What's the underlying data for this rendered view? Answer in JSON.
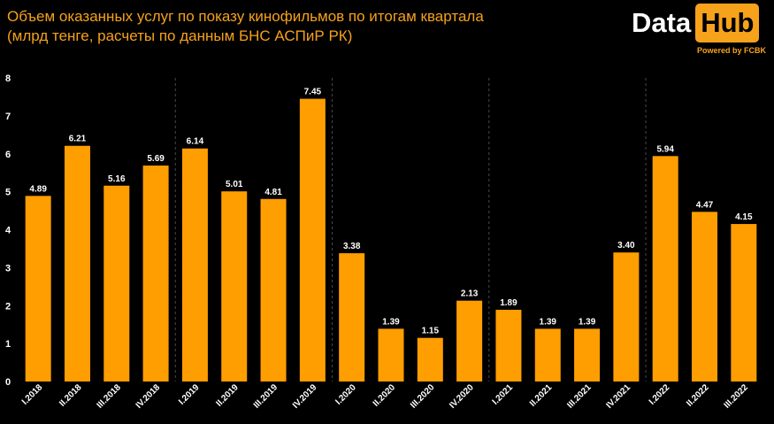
{
  "header": {
    "title_line1": "Объем оказанных услуг по показу кинофильмов по итогам квартала",
    "title_line2": "(млрд тенге, расчеты по данным БНС АСПиР РК)"
  },
  "logo": {
    "data_text": "Data",
    "hub_text": "Hub",
    "powered_text": "Powered by FCBK"
  },
  "colors": {
    "bar": "#FF9E00",
    "title": "#F5A11C",
    "text": "#FFFFFF",
    "grid": "#4A4A4A"
  },
  "chart_data": {
    "type": "bar",
    "title": "Объем оказанных услуг по показу кинофильмов по итогам квартала (млрд тенге, расчеты по данным БНС АСПиР РК)",
    "categories": [
      "I.2018",
      "II.2018",
      "III.2018",
      "IV.2018",
      "I.2019",
      "II.2019",
      "III.2019",
      "IV.2019",
      "I.2020",
      "II.2020",
      "III.2020",
      "IV.2020",
      "I.2021",
      "II.2021",
      "III.2021",
      "IV.2021",
      "I.2022",
      "II.2022",
      "III.2022"
    ],
    "values": [
      4.89,
      6.21,
      5.16,
      5.69,
      6.14,
      5.01,
      4.81,
      7.45,
      3.38,
      1.39,
      1.15,
      2.13,
      1.89,
      1.39,
      1.39,
      3.4,
      5.94,
      4.47,
      4.15
    ],
    "value_labels": [
      "4.89",
      "6.21",
      "5.16",
      "5.69",
      "6.14",
      "5.01",
      "4.81",
      "7.45",
      "3.38",
      "1.39",
      "1.15",
      "2.13",
      "1.89",
      "1.39",
      "1.39",
      "3.40",
      "5.94",
      "4.47",
      "4.15"
    ],
    "yticks": [
      "0",
      "1",
      "2",
      "3",
      "4",
      "5",
      "6",
      "7",
      "8"
    ],
    "ylim": [
      0,
      8
    ],
    "grid": "vertical dashed separators between years",
    "legend": "none"
  }
}
